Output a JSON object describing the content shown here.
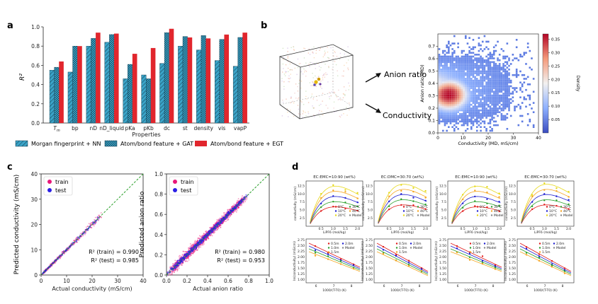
{
  "panels": {
    "a": "a",
    "b": "b",
    "c": "c",
    "d": "d"
  },
  "chart_data": [
    {
      "type": "bar",
      "panel": "a",
      "ylabel": "R²",
      "xlabel": "Properties",
      "ylim": [
        0,
        1.0
      ],
      "yticks": [
        "0.0",
        "0.2",
        "0.4",
        "0.6",
        "0.8",
        "1.0"
      ],
      "categories": [
        "Tm",
        "bp",
        "nD",
        "nD_liquid",
        "pKa",
        "pKb",
        "dc",
        "st",
        "density",
        "vis",
        "vapP"
      ],
      "series": [
        {
          "name": "Morgan fingerprint + NN",
          "color": "#3aa3c7",
          "hatch": "diagonal",
          "values": [
            0.55,
            0.53,
            0.8,
            0.84,
            0.46,
            0.5,
            0.62,
            0.8,
            0.76,
            0.65,
            0.59
          ]
        },
        {
          "name": "Atom/bond feature + GAT",
          "color": "#3aa3c7",
          "hatch": "cross",
          "values": [
            0.58,
            0.8,
            0.88,
            0.92,
            0.61,
            0.46,
            0.94,
            0.9,
            0.91,
            0.87,
            0.89
          ]
        },
        {
          "name": "Atom/bond feature + EGT",
          "color": "#e1262d",
          "hatch": "none",
          "values": [
            0.64,
            0.8,
            0.94,
            0.93,
            0.72,
            0.78,
            0.98,
            0.89,
            0.88,
            0.92,
            0.94
          ]
        }
      ]
    },
    {
      "type": "heatmap",
      "panel": "b",
      "xlabel": "Conductivity (MD, mS/cm)",
      "ylabel": "Anion ratio (MD)",
      "xlim": [
        0,
        40
      ],
      "ylim": [
        0,
        0.8
      ],
      "xticks": [
        "0",
        "10",
        "20",
        "30",
        "40"
      ],
      "yticks": [
        "0.0",
        "0.1",
        "0.2",
        "0.3",
        "0.4",
        "0.5",
        "0.6",
        "0.7"
      ],
      "colorbar_label": "Density",
      "colorbar_ticks": [
        "0.05",
        "0.10",
        "0.15",
        "0.20",
        "0.25",
        "0.30",
        "0.35"
      ],
      "peak": {
        "x": 4,
        "y": 0.3
      }
    },
    {
      "type": "scatter",
      "panel": "c-left",
      "xlabel": "Actual conductivity (mS/cm)",
      "ylabel": "Predicted conductivity (mS/cm)",
      "xlim": [
        0,
        40
      ],
      "ylim": [
        0,
        40
      ],
      "xticks": [
        "0",
        "10",
        "20",
        "30",
        "40"
      ],
      "yticks": [
        "0",
        "10",
        "20",
        "30",
        "40"
      ],
      "legend": [
        "train",
        "test"
      ],
      "r2_train": "R² (train) = 0.990",
      "r2_test": "R² (test) = 0.985"
    },
    {
      "type": "scatter",
      "panel": "c-right",
      "xlabel": "Actual anion ratio",
      "ylabel": "Predicted anion ratio",
      "xlim": [
        0,
        1.0
      ],
      "ylim": [
        0,
        1.0
      ],
      "xticks": [
        "0.0",
        "0.2",
        "0.4",
        "0.6",
        "0.8",
        "1.0"
      ],
      "yticks": [
        "0.0",
        "0.2",
        "0.4",
        "0.6",
        "0.8",
        "1.0"
      ],
      "legend": [
        "train",
        "test"
      ],
      "r2_train": "R² (train) = 0.980",
      "r2_test": "R² (test) = 0.953"
    }
  ],
  "panel_b": {
    "arrow1": "Anion ratio",
    "arrow2": "Conductivity"
  },
  "panel_d": {
    "titles": [
      "EC:EMC=10:90 (wt%)",
      "EC:DMC=30:70 (wt%)",
      "EC:EMC=10:90 (wt%)",
      "EC:EMC=30:70 (wt%)"
    ],
    "top_xlabel": "LiPF6 (mol/kg)",
    "top_ylabel": "conductivity (mS/cm)",
    "bottom_xlabel": "1000/(T-T0) (K)",
    "bottom_ylabel": "ln(conductivity) (mS/cm)",
    "top_legend": [
      "0°C",
      "30°C",
      "10°C",
      "40°C",
      "20°C",
      "Model"
    ],
    "bottom_legend": [
      "0.5m",
      "2.0m",
      "1.0m",
      "Model",
      "1.5m"
    ]
  },
  "legend_labels": [
    "Morgan fingerprint + NN",
    "Atom/bond feature + GAT",
    "Atom/bond feature + EGT"
  ]
}
